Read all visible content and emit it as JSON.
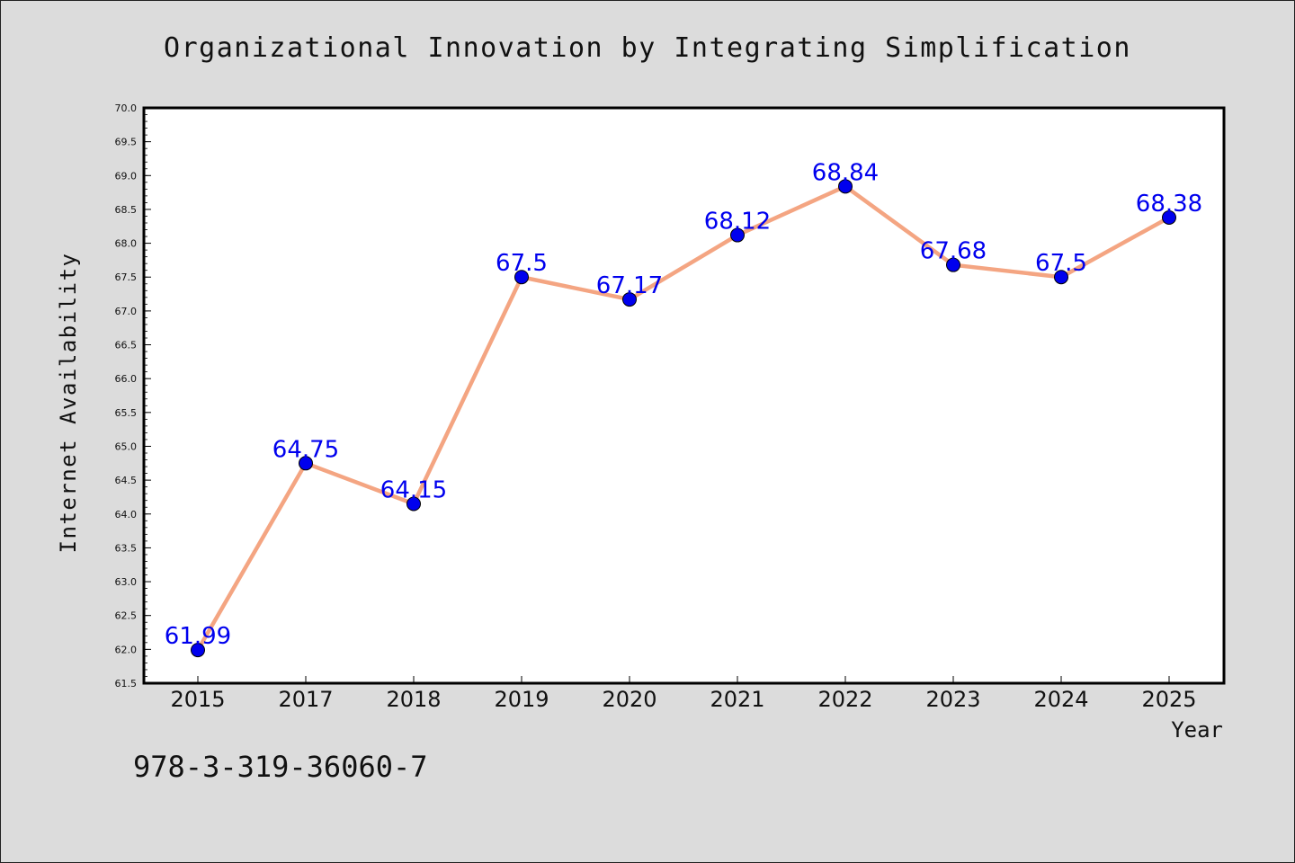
{
  "chart_data": {
    "type": "line",
    "title": "Organizational Innovation by Integrating Simplification",
    "xlabel": "Year",
    "ylabel": "Internet Availability",
    "categories": [
      "2015",
      "2017",
      "2018",
      "2019",
      "2020",
      "2021",
      "2022",
      "2023",
      "2024",
      "2025"
    ],
    "series": [
      {
        "values": [
          61.99,
          64.75,
          64.15,
          67.5,
          67.17,
          68.12,
          68.84,
          67.68,
          67.5,
          68.38
        ],
        "labels": [
          "61.99",
          "64.75",
          "64.15",
          "67.5",
          "67.17",
          "68.12",
          "68.84",
          "67.68",
          "67.5",
          "68.38"
        ]
      }
    ],
    "ylim": [
      61.5,
      70.0
    ],
    "yticks": [
      "61.5",
      "62.0",
      "62.5",
      "63.0",
      "63.5",
      "64.0",
      "64.5",
      "65.0",
      "65.5",
      "66.0",
      "66.5",
      "67.0",
      "67.5",
      "68.0",
      "68.5",
      "69.0",
      "69.5",
      "70.0"
    ],
    "grid": false,
    "line_color": "#f4a582",
    "marker_color": "#0000ee",
    "label_color": "#0000ee"
  },
  "annotation": "978-3-319-36060-7"
}
